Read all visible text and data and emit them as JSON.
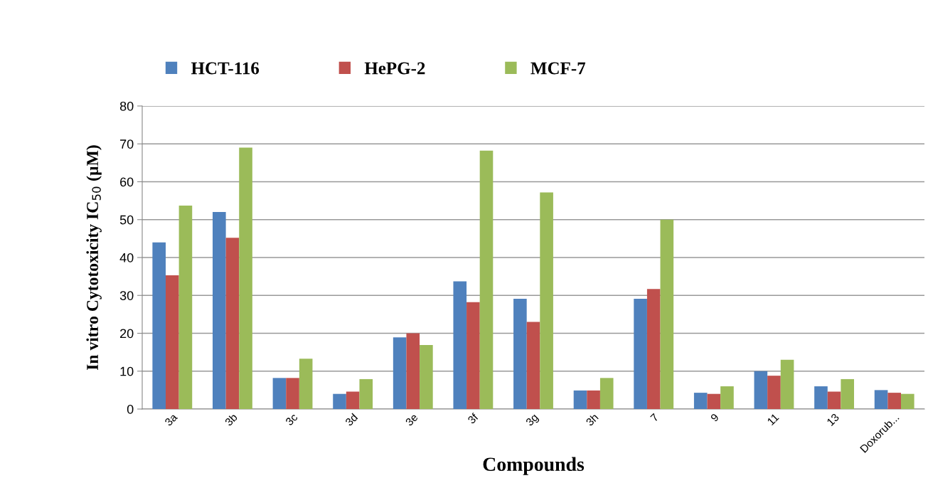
{
  "chart_data": {
    "type": "bar",
    "xlabel": "Compounds",
    "ylabel": "In vitro Cytotoxicity IC$_{50}$ (µM)",
    "categories": [
      "3a",
      "3b",
      "3c",
      "3d",
      "3e",
      "3f",
      "3g",
      "3h",
      "7",
      "9",
      "11",
      "13",
      "Doxorub..."
    ],
    "series": [
      {
        "name": "HCT-116",
        "color": "#4f81bd",
        "values": [
          44,
          52,
          8.2,
          4,
          18.9,
          33.7,
          29.1,
          4.9,
          29.1,
          4.3,
          10,
          6,
          5
        ]
      },
      {
        "name": "HePG-2",
        "color": "#c0504d",
        "values": [
          35.3,
          45.2,
          8.2,
          4.6,
          20,
          28.2,
          23,
          4.9,
          31.7,
          4,
          8.8,
          4.6,
          4.3
        ]
      },
      {
        "name": "MCF-7",
        "color": "#9bbb59",
        "values": [
          53.7,
          69,
          13.3,
          7.9,
          16.9,
          68.2,
          57.2,
          8.2,
          50,
          6,
          13,
          7.9,
          4
        ]
      }
    ],
    "ylim": [
      0,
      80
    ],
    "yticks": [
      0,
      10,
      20,
      30,
      40,
      50,
      60,
      70,
      80
    ],
    "grid": "y",
    "legend": "top left"
  }
}
